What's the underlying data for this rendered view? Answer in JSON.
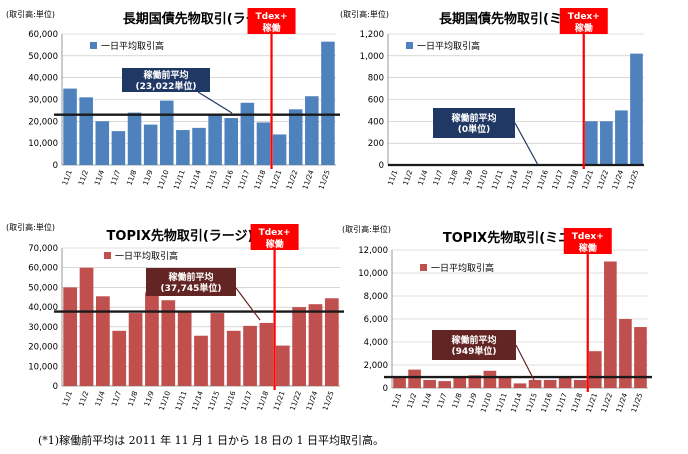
{
  "footnote": "(*1)稼働前平均は 2011 年 11 月 1 日から 18 日の 1 日平均取引高。",
  "chart_data": [
    {
      "type": "bar",
      "title": "長期国債先物取引(ラージ)",
      "unit_label": "(取引高:単位)",
      "legend": "一日平均取引高",
      "color": "#4f81bd",
      "categories": [
        "11/1",
        "11/2",
        "11/4",
        "11/7",
        "11/8",
        "11/9",
        "11/10",
        "11/11",
        "11/14",
        "11/15",
        "11/16",
        "11/17",
        "11/18",
        "11/21",
        "11/22",
        "11/24",
        "11/25"
      ],
      "values": [
        35000,
        31000,
        20000,
        15500,
        24000,
        18500,
        29500,
        16000,
        17000,
        23000,
        21500,
        28500,
        19500,
        14000,
        25500,
        31500,
        56500
      ],
      "ylim": [
        0,
        60000
      ],
      "yticks": [
        "0",
        "10,000",
        "20,000",
        "30,000",
        "40,000",
        "50,000",
        "60,000"
      ],
      "average": 23022,
      "average_label": [
        "稼働前平均",
        "(23,022単位)"
      ],
      "tdex_label": [
        "Tdex+",
        "稼働"
      ]
    },
    {
      "type": "bar",
      "title": "長期国債先物取引(ミニ)",
      "unit_label": "(取引高:単位)",
      "legend": "一日平均取引高",
      "color": "#4f81bd",
      "categories": [
        "11/1",
        "11/2",
        "11/4",
        "11/7",
        "11/8",
        "11/9",
        "11/10",
        "11/11",
        "11/14",
        "11/15",
        "11/16",
        "11/17",
        "11/18",
        "11/21",
        "11/22",
        "11/24",
        "11/25"
      ],
      "values": [
        0,
        0,
        0,
        0,
        0,
        0,
        0,
        0,
        0,
        0,
        0,
        0,
        0,
        400,
        400,
        500,
        1020
      ],
      "ylim": [
        0,
        1200
      ],
      "yticks": [
        "0",
        "200",
        "400",
        "600",
        "800",
        "1,000",
        "1,200"
      ],
      "average": 0,
      "average_label": [
        "稼働前平均",
        "(0単位)"
      ],
      "tdex_label": [
        "Tdex+",
        "稼働"
      ]
    },
    {
      "type": "bar",
      "title": "TOPIX先物取引(ラージ)",
      "unit_label": "(取引高:単位)",
      "legend": "一日平均取引高",
      "color": "#c0504d",
      "categories": [
        "11/1",
        "11/2",
        "11/4",
        "11/7",
        "11/8",
        "11/9",
        "11/10",
        "11/11",
        "11/14",
        "11/15",
        "11/16",
        "11/17",
        "11/18",
        "11/21",
        "11/22",
        "11/24",
        "11/25"
      ],
      "values": [
        50000,
        60000,
        45500,
        28000,
        37000,
        47500,
        43500,
        37500,
        25500,
        37000,
        28000,
        30500,
        32000,
        20500,
        40000,
        41500,
        44500
      ],
      "ylim": [
        0,
        70000
      ],
      "yticks": [
        "0",
        "10,000",
        "20,000",
        "30,000",
        "40,000",
        "50,000",
        "60,000",
        "70,000"
      ],
      "average": 37745,
      "average_label": [
        "稼働前平均",
        "(37,745単位)"
      ],
      "tdex_label": [
        "Tdex+",
        "稼働"
      ]
    },
    {
      "type": "bar",
      "title": "TOPIX先物取引(ミニ)",
      "unit_label": "(取引高:単位)",
      "legend": "一日平均取引高",
      "color": "#c0504d",
      "categories": [
        "11/1",
        "11/2",
        "11/4",
        "11/7",
        "11/8",
        "11/9",
        "11/10",
        "11/11",
        "11/14",
        "11/15",
        "11/16",
        "11/17",
        "11/18",
        "11/21",
        "11/22",
        "11/24",
        "11/25"
      ],
      "values": [
        900,
        1600,
        700,
        600,
        900,
        1100,
        1500,
        900,
        400,
        700,
        700,
        1000,
        700,
        3200,
        11000,
        6000,
        5300
      ],
      "ylim": [
        0,
        12000
      ],
      "yticks": [
        "0",
        "2,000",
        "4,000",
        "6,000",
        "8,000",
        "10,000",
        "12,000"
      ],
      "average": 949,
      "average_label": [
        "稼働前平均",
        "(949単位)"
      ],
      "tdex_label": [
        "Tdex+",
        "稼働"
      ]
    }
  ]
}
